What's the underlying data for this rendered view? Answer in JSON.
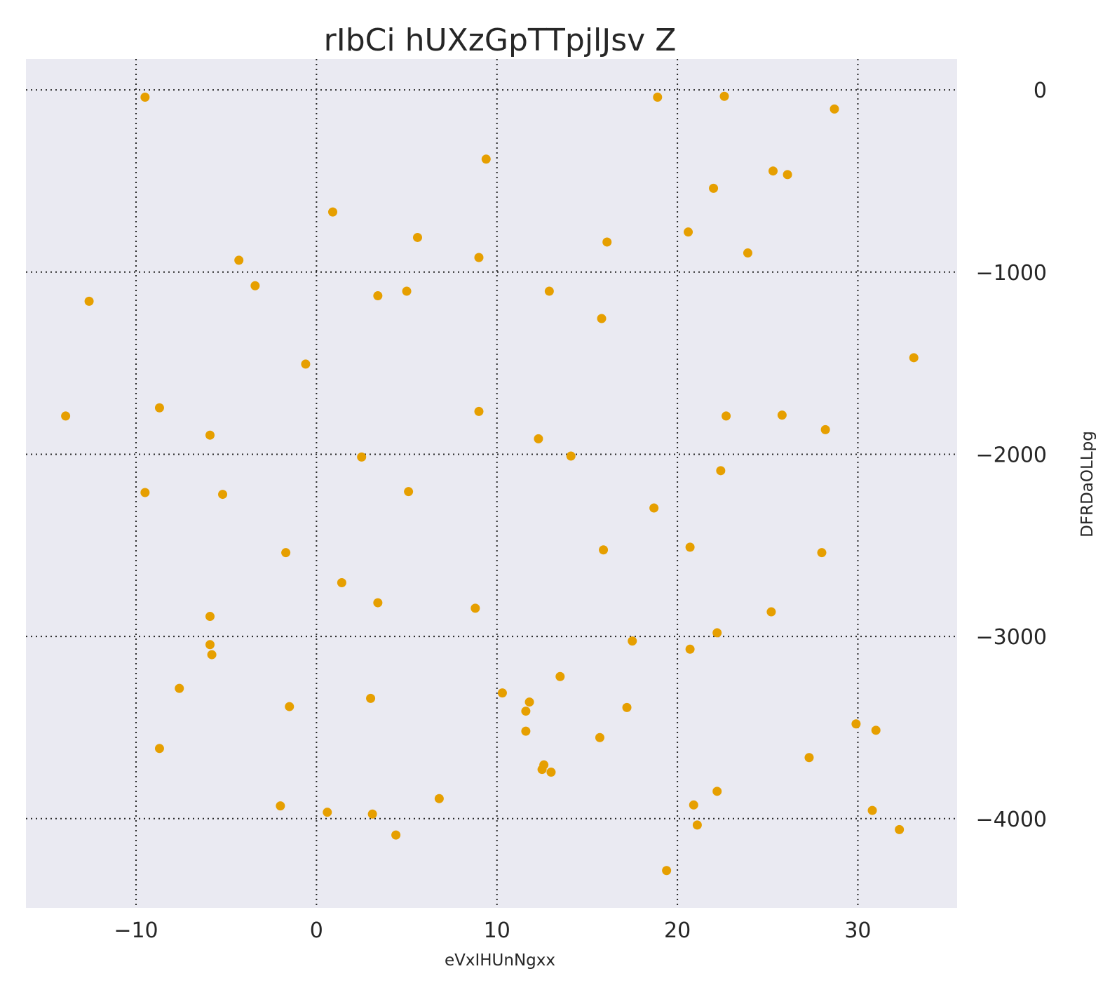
{
  "chart_data": {
    "type": "scatter",
    "title": "rIbCi hUXzGpTTpjlJsv Z",
    "xlabel": "eVxIHUnNgxx",
    "ylabel": "DFRDaOLLpg",
    "xlim": [
      -16.1,
      35.5
    ],
    "ylim": [
      -4490,
      170
    ],
    "xticks": [
      -10,
      0,
      10,
      20,
      30
    ],
    "xtick_labels": [
      "−10",
      "0",
      "10",
      "20",
      "30"
    ],
    "yticks": [
      0,
      -1000,
      -2000,
      -3000,
      -4000
    ],
    "ytick_labels": [
      "0",
      "−1000",
      "−2000",
      "−3000",
      "−4000"
    ],
    "y_axis_side": "right",
    "grid": true,
    "grid_style": "dotted",
    "legend": "none",
    "colors": {
      "background": "#eaeaf2",
      "marker": "#e69f00",
      "grid": "#262626",
      "text": "#262626"
    },
    "series": [
      {
        "points": [
          {
            "x": -9.5,
            "y": -40
          },
          {
            "x": 18.9,
            "y": -40
          },
          {
            "x": 22.6,
            "y": -35
          },
          {
            "x": 28.7,
            "y": -105
          },
          {
            "x": 9.4,
            "y": -380
          },
          {
            "x": 25.3,
            "y": -445
          },
          {
            "x": 26.1,
            "y": -465
          },
          {
            "x": 22.0,
            "y": -540
          },
          {
            "x": 0.9,
            "y": -670
          },
          {
            "x": 5.6,
            "y": -810
          },
          {
            "x": 20.6,
            "y": -780
          },
          {
            "x": 16.1,
            "y": -835
          },
          {
            "x": 23.9,
            "y": -895
          },
          {
            "x": -4.3,
            "y": -935
          },
          {
            "x": 9.0,
            "y": -920
          },
          {
            "x": -3.4,
            "y": -1075
          },
          {
            "x": 3.4,
            "y": -1130
          },
          {
            "x": 5.0,
            "y": -1105
          },
          {
            "x": 12.9,
            "y": -1105
          },
          {
            "x": -12.6,
            "y": -1160
          },
          {
            "x": 15.8,
            "y": -1255
          },
          {
            "x": 33.1,
            "y": -1470
          },
          {
            "x": -0.6,
            "y": -1505
          },
          {
            "x": -8.7,
            "y": -1745
          },
          {
            "x": 9.0,
            "y": -1765
          },
          {
            "x": -13.9,
            "y": -1790
          },
          {
            "x": 22.7,
            "y": -1790
          },
          {
            "x": 25.8,
            "y": -1785
          },
          {
            "x": 28.2,
            "y": -1865
          },
          {
            "x": -5.9,
            "y": -1895
          },
          {
            "x": 12.3,
            "y": -1915
          },
          {
            "x": 2.5,
            "y": -2015
          },
          {
            "x": 14.1,
            "y": -2010
          },
          {
            "x": 22.4,
            "y": -2090
          },
          {
            "x": -9.5,
            "y": -2210
          },
          {
            "x": -5.2,
            "y": -2220
          },
          {
            "x": 5.1,
            "y": -2205
          },
          {
            "x": 18.7,
            "y": -2295
          },
          {
            "x": -1.7,
            "y": -2540
          },
          {
            "x": 15.9,
            "y": -2525
          },
          {
            "x": 20.7,
            "y": -2510
          },
          {
            "x": 28.0,
            "y": -2540
          },
          {
            "x": 1.4,
            "y": -2705
          },
          {
            "x": 3.4,
            "y": -2815
          },
          {
            "x": 8.8,
            "y": -2845
          },
          {
            "x": 25.2,
            "y": -2865
          },
          {
            "x": -5.9,
            "y": -2890
          },
          {
            "x": 22.2,
            "y": -2980
          },
          {
            "x": -5.9,
            "y": -3045
          },
          {
            "x": 17.5,
            "y": -3025
          },
          {
            "x": 20.7,
            "y": -3070
          },
          {
            "x": -5.8,
            "y": -3100
          },
          {
            "x": 13.5,
            "y": -3220
          },
          {
            "x": -7.6,
            "y": -3285
          },
          {
            "x": 10.3,
            "y": -3310
          },
          {
            "x": 3.0,
            "y": -3340
          },
          {
            "x": 11.8,
            "y": -3360
          },
          {
            "x": -1.5,
            "y": -3385
          },
          {
            "x": 17.2,
            "y": -3390
          },
          {
            "x": 11.6,
            "y": -3410
          },
          {
            "x": 29.9,
            "y": -3480
          },
          {
            "x": 31.0,
            "y": -3515
          },
          {
            "x": 11.6,
            "y": -3520
          },
          {
            "x": 15.7,
            "y": -3555
          },
          {
            "x": -8.7,
            "y": -3615
          },
          {
            "x": 27.3,
            "y": -3665
          },
          {
            "x": 12.6,
            "y": -3705
          },
          {
            "x": 12.5,
            "y": -3730
          },
          {
            "x": 13.0,
            "y": -3745
          },
          {
            "x": 22.2,
            "y": -3850
          },
          {
            "x": 6.8,
            "y": -3890
          },
          {
            "x": -2.0,
            "y": -3930
          },
          {
            "x": 20.9,
            "y": -3925
          },
          {
            "x": 0.6,
            "y": -3965
          },
          {
            "x": 3.1,
            "y": -3975
          },
          {
            "x": 30.8,
            "y": -3955
          },
          {
            "x": 21.1,
            "y": -4035
          },
          {
            "x": 32.3,
            "y": -4060
          },
          {
            "x": 4.4,
            "y": -4090
          },
          {
            "x": 19.4,
            "y": -4285
          }
        ]
      }
    ]
  }
}
